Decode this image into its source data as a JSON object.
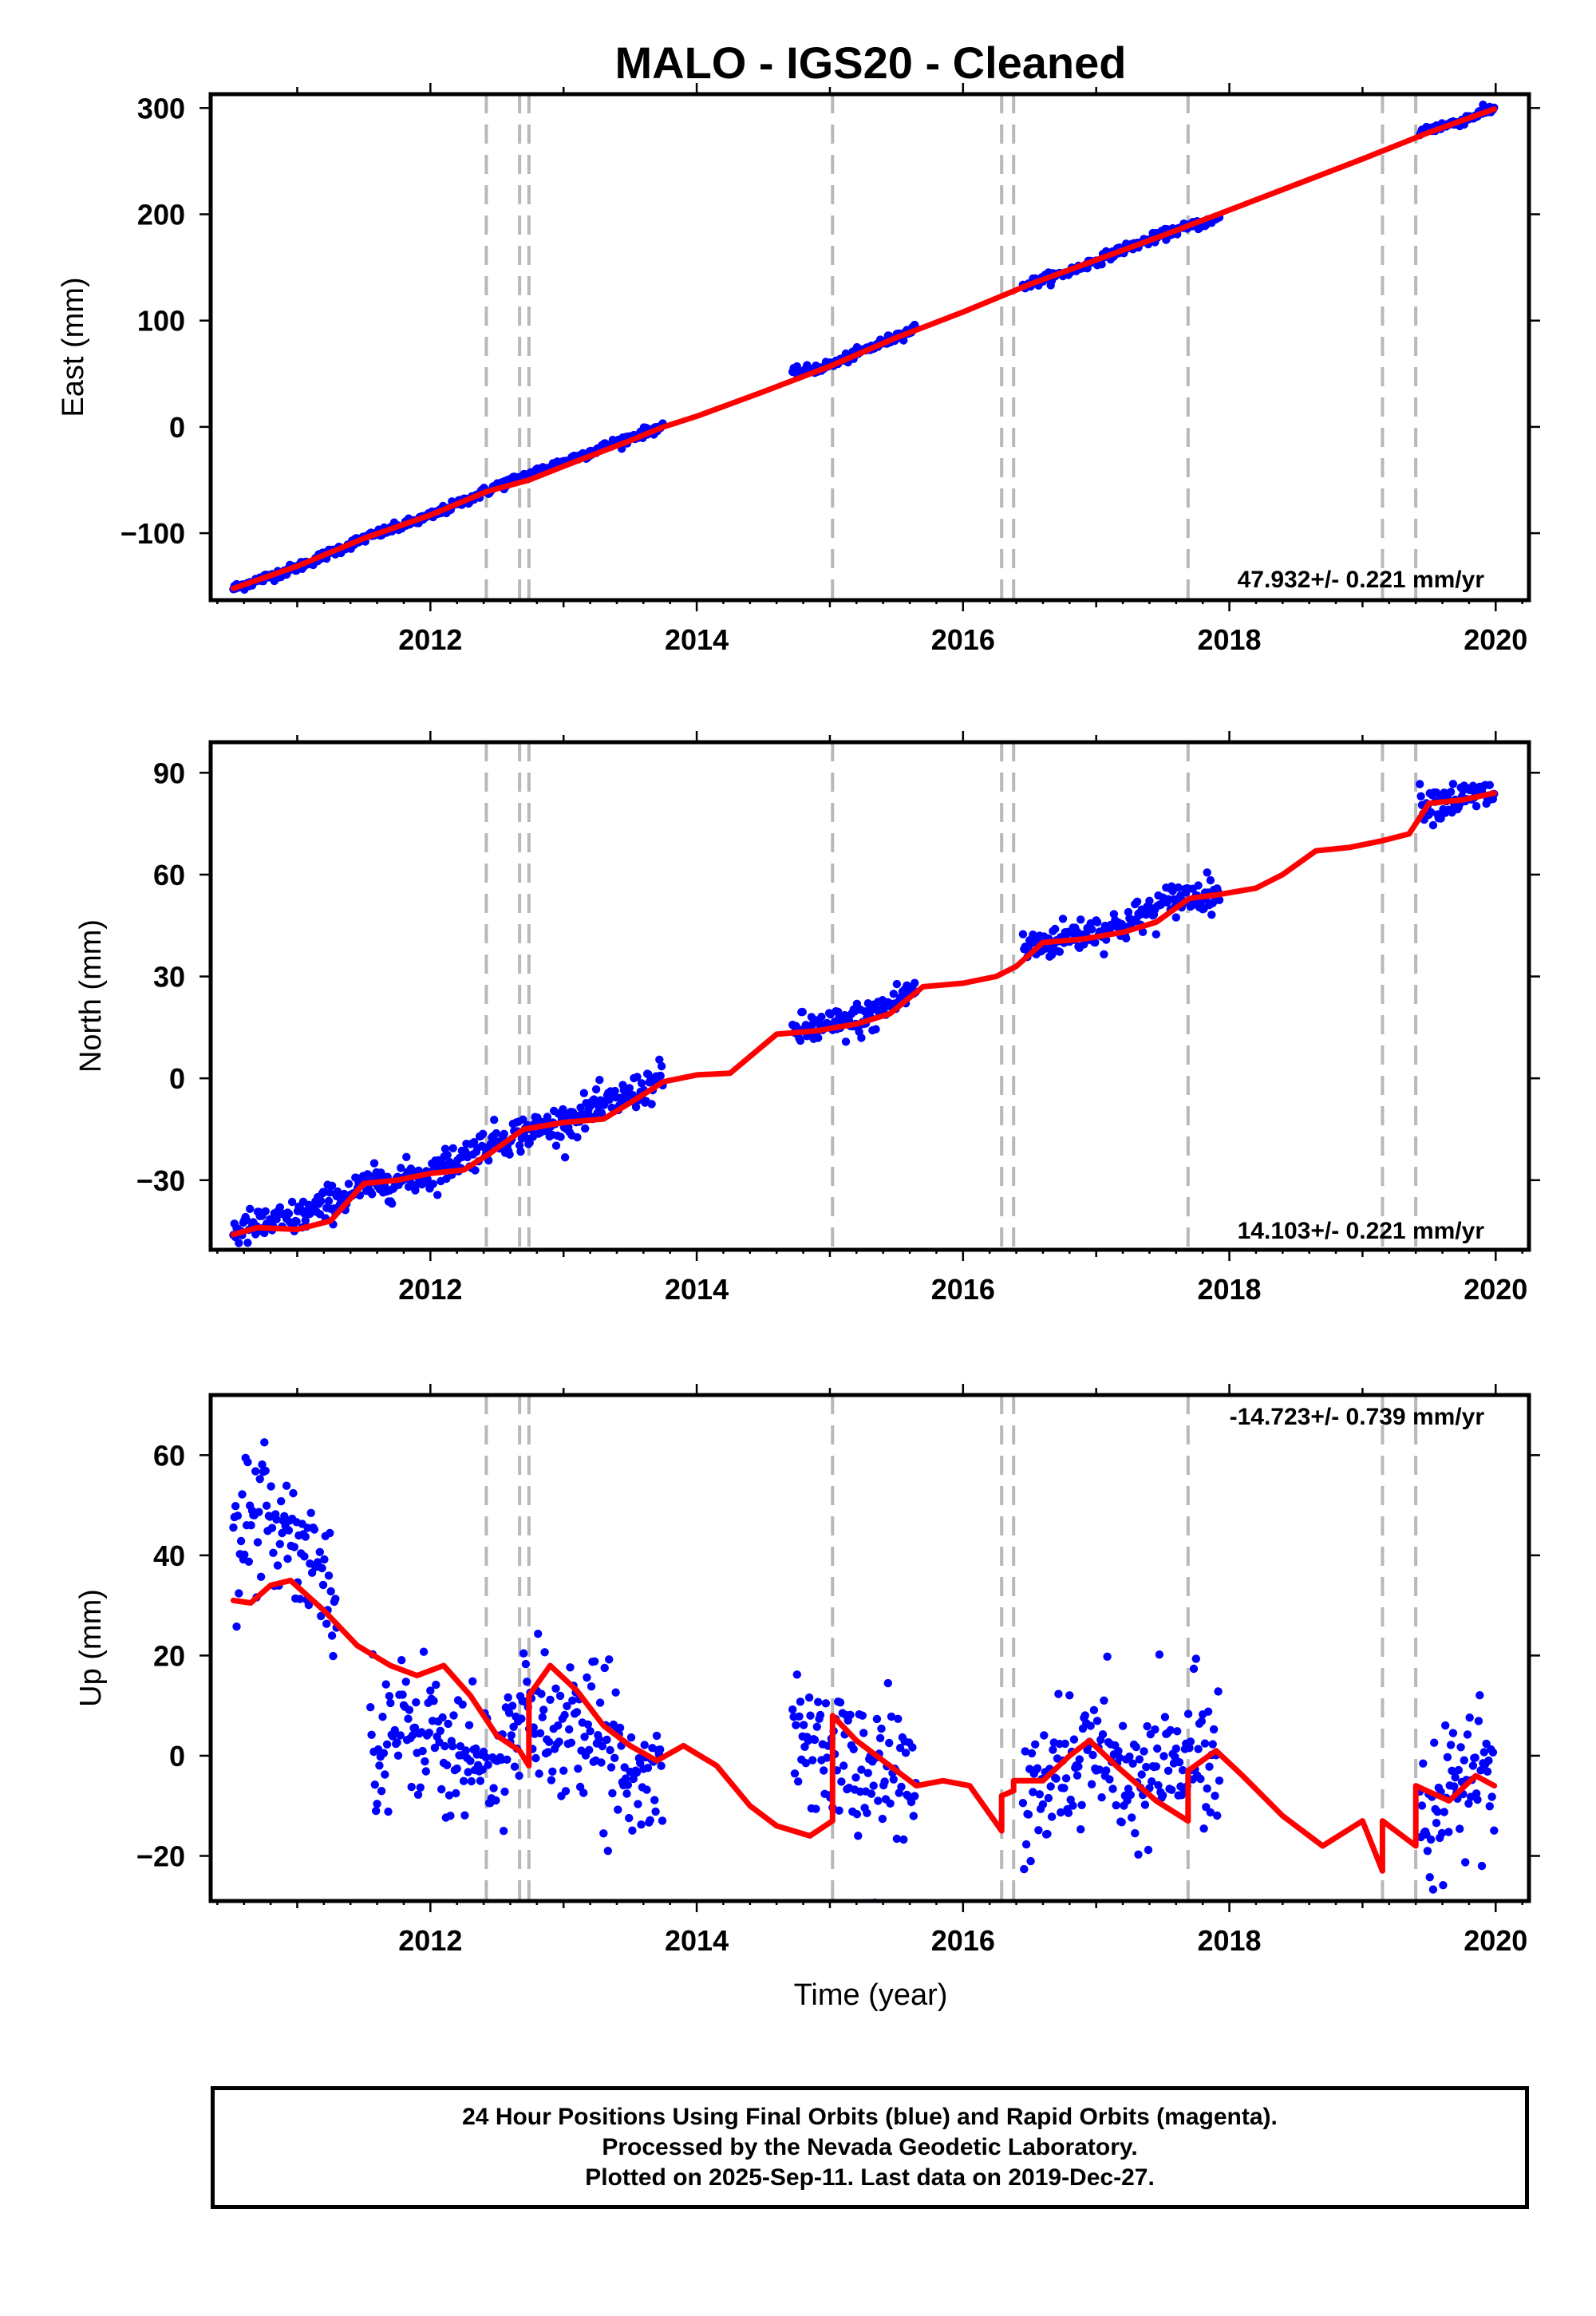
{
  "figure": {
    "title": "MALO  - IGS20 - Cleaned",
    "xlabel": "Time (year)",
    "colors": {
      "final_orbits": "#0000ff",
      "model": "#ff0000",
      "offset_lines": "#b8b8b8",
      "frame": "#000000"
    }
  },
  "chart_data": [
    {
      "type": "scatter",
      "component": "east",
      "ylabel": "East (mm)",
      "xlim": [
        2010.35,
        2020.25
      ],
      "ylim": [
        -163,
        313
      ],
      "xticks": [
        2012,
        2014,
        2016,
        2018,
        2020
      ],
      "yticks": [
        -100,
        0,
        100,
        200,
        300
      ],
      "ytick_labels": [
        "−100",
        "0",
        "100",
        "200",
        "300"
      ],
      "rate_label": "47.932+/- 0.221 mm/yr",
      "rate_position": "bottom-right",
      "offset_epochs": [
        2012.42,
        2012.67,
        2012.74,
        2015.02,
        2016.29,
        2016.38,
        2017.69,
        2019.15,
        2019.4
      ],
      "data_segments": [
        [
          2010.52,
          2013.75
        ],
        [
          2014.72,
          2015.65
        ],
        [
          2016.45,
          2017.93
        ],
        [
          2019.43,
          2019.99
        ]
      ],
      "series": [
        {
          "name": "Final Orbits",
          "color": "#0000ff",
          "points": [
            [
              2010.52,
              -152
            ],
            [
              2011.0,
              -132
            ],
            [
              2011.5,
              -105
            ],
            [
              2012.0,
              -84
            ],
            [
              2012.5,
              -56
            ],
            [
              2013.0,
              -33
            ],
            [
              2013.5,
              -10
            ],
            [
              2013.75,
              1
            ],
            [
              2014.72,
              50
            ],
            [
              2015.0,
              58
            ],
            [
              2015.3,
              74
            ],
            [
              2015.65,
              93
            ],
            [
              2016.45,
              133
            ],
            [
              2016.8,
              146
            ],
            [
              2017.2,
              167
            ],
            [
              2017.6,
              185
            ],
            [
              2017.93,
              196
            ],
            [
              2019.43,
              278
            ],
            [
              2019.7,
              286
            ],
            [
              2019.99,
              300
            ]
          ]
        },
        {
          "name": "Model",
          "color": "#ff0000",
          "points": [
            [
              2010.52,
              -152
            ],
            [
              2011.0,
              -131
            ],
            [
              2011.5,
              -105
            ],
            [
              2012.0,
              -83
            ],
            [
              2012.42,
              -61
            ],
            [
              2012.74,
              -50
            ],
            [
              2013.0,
              -37
            ],
            [
              2013.5,
              -13
            ],
            [
              2013.75,
              0
            ],
            [
              2014.0,
              10
            ],
            [
              2014.5,
              33
            ],
            [
              2015.0,
              57
            ],
            [
              2015.5,
              84
            ],
            [
              2016.0,
              108
            ],
            [
              2016.5,
              134
            ],
            [
              2017.0,
              157
            ],
            [
              2017.5,
              180
            ],
            [
              2018.0,
              204
            ],
            [
              2018.5,
              228
            ],
            [
              2019.0,
              252
            ],
            [
              2019.5,
              277
            ],
            [
              2019.99,
              299
            ]
          ]
        }
      ]
    },
    {
      "type": "scatter",
      "component": "north",
      "ylabel": "North (mm)",
      "xlim": [
        2010.35,
        2020.25
      ],
      "ylim": [
        -50.5,
        99
      ],
      "xticks": [
        2012,
        2014,
        2016,
        2018,
        2020
      ],
      "yticks": [
        -30,
        0,
        30,
        60,
        90
      ],
      "ytick_labels": [
        "−30",
        "0",
        "30",
        "60",
        "90"
      ],
      "rate_label": "14.103+/- 0.221 mm/yr",
      "rate_position": "bottom-right",
      "offset_epochs": [
        2012.42,
        2012.67,
        2012.74,
        2015.02,
        2016.29,
        2016.38,
        2017.69,
        2019.15,
        2019.4
      ],
      "data_segments": [
        [
          2010.52,
          2013.75
        ],
        [
          2014.72,
          2015.65
        ],
        [
          2016.45,
          2017.93
        ],
        [
          2019.43,
          2019.99
        ]
      ],
      "series": [
        {
          "name": "Final Orbits",
          "color": "#0000ff",
          "points": [
            [
              2010.52,
              -45
            ],
            [
              2011.0,
              -41
            ],
            [
              2011.5,
              -32
            ],
            [
              2012.0,
              -28
            ],
            [
              2012.5,
              -18
            ],
            [
              2013.0,
              -13
            ],
            [
              2013.5,
              -5
            ],
            [
              2013.75,
              0
            ],
            [
              2014.72,
              14
            ],
            [
              2015.0,
              15
            ],
            [
              2015.3,
              18
            ],
            [
              2015.65,
              27
            ],
            [
              2016.45,
              38
            ],
            [
              2016.8,
              42
            ],
            [
              2017.2,
              45
            ],
            [
              2017.6,
              53
            ],
            [
              2017.93,
              55
            ],
            [
              2019.43,
              81
            ],
            [
              2019.7,
              82
            ],
            [
              2019.99,
              84
            ]
          ]
        },
        {
          "name": "Model",
          "color": "#ff0000",
          "points": [
            [
              2010.52,
              -46
            ],
            [
              2010.7,
              -44
            ],
            [
              2011.0,
              -44.5
            ],
            [
              2011.25,
              -42
            ],
            [
              2011.5,
              -31
            ],
            [
              2011.75,
              -30
            ],
            [
              2012.0,
              -28
            ],
            [
              2012.25,
              -27
            ],
            [
              2012.45,
              -22
            ],
            [
              2012.7,
              -15
            ],
            [
              2013.0,
              -13
            ],
            [
              2013.3,
              -12
            ],
            [
              2013.55,
              -6
            ],
            [
              2013.75,
              -1
            ],
            [
              2014.0,
              1
            ],
            [
              2014.25,
              1.5
            ],
            [
              2014.6,
              13
            ],
            [
              2014.9,
              14
            ],
            [
              2015.2,
              16
            ],
            [
              2015.45,
              19
            ],
            [
              2015.7,
              27
            ],
            [
              2016.0,
              28
            ],
            [
              2016.25,
              30
            ],
            [
              2016.4,
              33
            ],
            [
              2016.6,
              40
            ],
            [
              2016.9,
              41
            ],
            [
              2017.2,
              43
            ],
            [
              2017.45,
              46
            ],
            [
              2017.7,
              53
            ],
            [
              2017.9,
              54
            ],
            [
              2018.2,
              56
            ],
            [
              2018.4,
              60
            ],
            [
              2018.65,
              67
            ],
            [
              2018.9,
              68
            ],
            [
              2019.15,
              70
            ],
            [
              2019.35,
              72
            ],
            [
              2019.5,
              81
            ],
            [
              2019.75,
              82
            ],
            [
              2019.99,
              84
            ]
          ]
        }
      ]
    },
    {
      "type": "scatter",
      "component": "up",
      "ylabel": "Up (mm)",
      "xlim": [
        2010.35,
        2020.25
      ],
      "ylim": [
        -29,
        72
      ],
      "xticks": [
        2012,
        2014,
        2016,
        2018,
        2020
      ],
      "yticks": [
        -20,
        0,
        20,
        40,
        60
      ],
      "ytick_labels": [
        "−20",
        "0",
        "20",
        "40",
        "60"
      ],
      "rate_label": "-14.723+/- 0.739 mm/yr",
      "rate_position": "top-right",
      "offset_epochs": [
        2012.42,
        2012.67,
        2012.74,
        2015.02,
        2016.29,
        2016.38,
        2017.69,
        2019.15,
        2019.4
      ],
      "data_segments": [
        [
          2010.52,
          2011.3
        ],
        [
          2011.55,
          2013.75
        ],
        [
          2014.72,
          2015.65
        ],
        [
          2016.45,
          2017.93
        ],
        [
          2019.43,
          2019.99
        ]
      ],
      "series": [
        {
          "name": "Final Orbits",
          "color": "#0000ff",
          "points": [
            [
              2010.6,
              45
            ],
            [
              2010.9,
              47
            ],
            [
              2011.2,
              37
            ],
            [
              2011.6,
              4
            ],
            [
              2012.0,
              6
            ],
            [
              2012.4,
              -3
            ],
            [
              2012.8,
              9
            ],
            [
              2013.2,
              4
            ],
            [
              2013.6,
              -2
            ],
            [
              2014.8,
              5
            ],
            [
              2015.2,
              -2
            ],
            [
              2015.6,
              -5
            ],
            [
              2016.5,
              -11
            ],
            [
              2016.9,
              1
            ],
            [
              2017.3,
              -6
            ],
            [
              2017.8,
              2
            ],
            [
              2019.5,
              -10
            ],
            [
              2019.8,
              -4
            ]
          ]
        },
        {
          "name": "Model",
          "color": "#ff0000",
          "points": [
            [
              2010.52,
              31
            ],
            [
              2010.65,
              30.5
            ],
            [
              2010.8,
              34
            ],
            [
              2010.95,
              35
            ],
            [
              2011.2,
              29
            ],
            [
              2011.45,
              22
            ],
            [
              2011.7,
              18
            ],
            [
              2011.9,
              16
            ],
            [
              2012.1,
              18
            ],
            [
              2012.3,
              12
            ],
            [
              2012.5,
              4
            ],
            [
              2012.67,
              1
            ],
            [
              2012.74,
              -2
            ],
            [
              2012.74,
              12
            ],
            [
              2012.9,
              18
            ],
            [
              2013.1,
              13
            ],
            [
              2013.3,
              6
            ],
            [
              2013.5,
              2
            ],
            [
              2013.7,
              -1
            ],
            [
              2013.9,
              2
            ],
            [
              2014.15,
              -2
            ],
            [
              2014.4,
              -10
            ],
            [
              2014.6,
              -14
            ],
            [
              2014.85,
              -16
            ],
            [
              2015.02,
              -13
            ],
            [
              2015.02,
              8
            ],
            [
              2015.2,
              3
            ],
            [
              2015.4,
              -1
            ],
            [
              2015.65,
              -6
            ],
            [
              2015.85,
              -5
            ],
            [
              2016.05,
              -6
            ],
            [
              2016.29,
              -15
            ],
            [
              2016.29,
              -8
            ],
            [
              2016.38,
              -7
            ],
            [
              2016.38,
              -5
            ],
            [
              2016.6,
              -5
            ],
            [
              2016.8,
              0
            ],
            [
              2016.95,
              3
            ],
            [
              2017.15,
              -2
            ],
            [
              2017.45,
              -9
            ],
            [
              2017.69,
              -13
            ],
            [
              2017.69,
              -3
            ],
            [
              2017.9,
              1
            ],
            [
              2018.1,
              -4
            ],
            [
              2018.4,
              -12
            ],
            [
              2018.7,
              -18
            ],
            [
              2019.0,
              -13
            ],
            [
              2019.15,
              -23
            ],
            [
              2019.15,
              -13
            ],
            [
              2019.4,
              -18
            ],
            [
              2019.4,
              -6
            ],
            [
              2019.65,
              -9
            ],
            [
              2019.85,
              -4
            ],
            [
              2019.99,
              -6
            ]
          ]
        }
      ]
    }
  ],
  "footer": {
    "line1": "24 Hour Positions Using Final Orbits (blue) and Rapid Orbits (magenta).",
    "line2": "Processed by the Nevada Geodetic Laboratory.",
    "line3": "Plotted on 2025-Sep-11. Last data on 2019-Dec-27."
  }
}
